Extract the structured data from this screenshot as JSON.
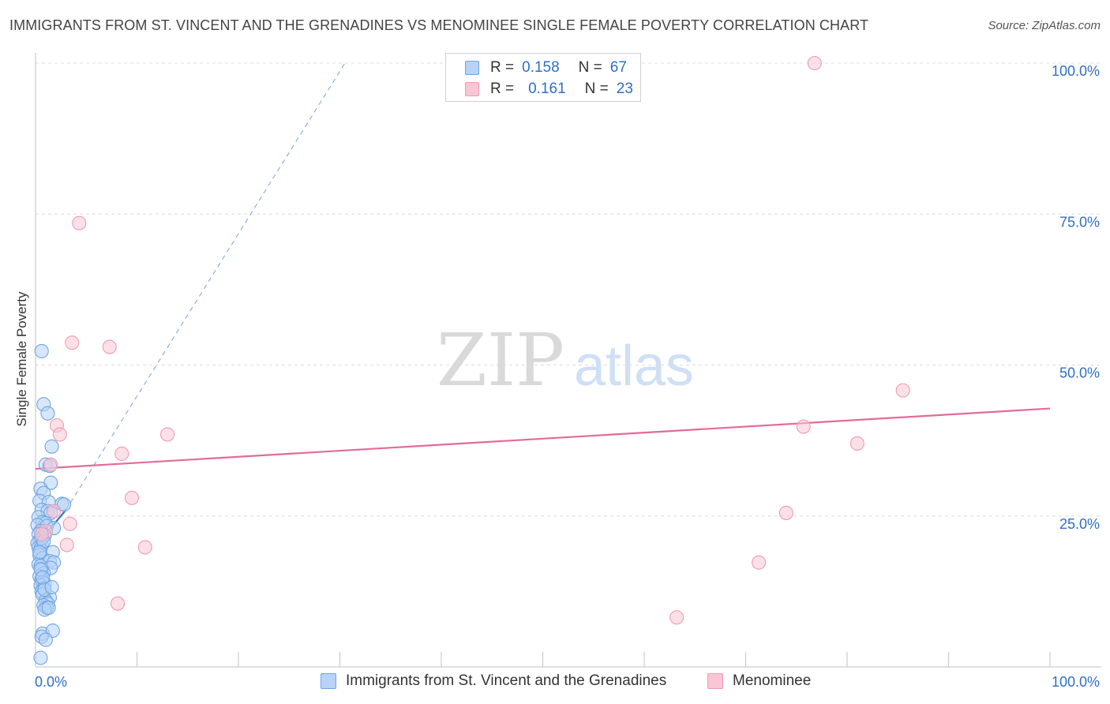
{
  "chart_data": {
    "type": "scatter",
    "title": "IMMIGRANTS FROM ST. VINCENT AND THE GRENADINES VS MENOMINEE SINGLE FEMALE POVERTY CORRELATION CHART",
    "source": "Source: ZipAtlas.com",
    "ylabel": "Single Female Poverty",
    "xlabel": "",
    "xlim": [
      0,
      100
    ],
    "ylim": [
      0,
      100
    ],
    "x_ticks": [
      {
        "value": 0,
        "label": "0.0%"
      },
      {
        "value": 100,
        "label": "100.0%"
      }
    ],
    "y_ticks": [
      {
        "value": 25,
        "label": "25.0%"
      },
      {
        "value": 50,
        "label": "50.0%"
      },
      {
        "value": 75,
        "label": "75.0%"
      },
      {
        "value": 100,
        "label": "100.0%"
      }
    ],
    "grid": true,
    "watermark": {
      "part1": "ZIP",
      "part2": "atlas"
    },
    "legend": {
      "r_label": "R =",
      "n_label": "N =",
      "entries": [
        {
          "r": "0.158",
          "n": "67"
        },
        {
          "r": "0.161",
          "n": "23"
        }
      ]
    },
    "series": [
      {
        "name": "Immigrants from St. Vincent and the Grenadines",
        "color": "#6fa4e4",
        "fill": "#b7d3f5",
        "r": 0.158,
        "n": 67,
        "trend": {
          "x0": 0,
          "y0": 20.0,
          "x1": 3.0,
          "y1": 26.0,
          "dashed_to": [
            30.5,
            100
          ]
        },
        "points": [
          [
            0.6,
            52.3
          ],
          [
            0.8,
            43.5
          ],
          [
            1.2,
            42.0
          ],
          [
            1.6,
            36.5
          ],
          [
            1.0,
            33.5
          ],
          [
            1.4,
            33.3
          ],
          [
            1.5,
            30.5
          ],
          [
            0.5,
            29.5
          ],
          [
            0.8,
            28.8
          ],
          [
            0.4,
            27.5
          ],
          [
            1.3,
            27.3
          ],
          [
            2.6,
            27.0
          ],
          [
            2.8,
            26.9
          ],
          [
            0.6,
            26.0
          ],
          [
            1.2,
            25.8
          ],
          [
            1.5,
            25.5
          ],
          [
            0.3,
            24.8
          ],
          [
            0.7,
            24.0
          ],
          [
            1.0,
            23.8
          ],
          [
            0.2,
            23.5
          ],
          [
            1.1,
            23.3
          ],
          [
            1.8,
            23.0
          ],
          [
            0.5,
            22.5
          ],
          [
            0.3,
            22.0
          ],
          [
            0.9,
            21.8
          ],
          [
            0.4,
            21.0
          ],
          [
            0.2,
            20.5
          ],
          [
            0.6,
            20.2
          ],
          [
            0.3,
            19.8
          ],
          [
            0.5,
            19.5
          ],
          [
            1.7,
            19.0
          ],
          [
            0.4,
            18.5
          ],
          [
            0.7,
            18.0
          ],
          [
            1.4,
            17.5
          ],
          [
            1.8,
            17.3
          ],
          [
            0.3,
            17.0
          ],
          [
            0.5,
            16.7
          ],
          [
            1.5,
            16.4
          ],
          [
            0.6,
            16.0
          ],
          [
            0.8,
            15.5
          ],
          [
            0.4,
            15.0
          ],
          [
            0.6,
            14.5
          ],
          [
            0.7,
            14.0
          ],
          [
            0.9,
            13.8
          ],
          [
            0.5,
            13.5
          ],
          [
            0.8,
            13.0
          ],
          [
            0.6,
            12.5
          ],
          [
            0.7,
            12.0
          ],
          [
            1.4,
            11.5
          ],
          [
            1.0,
            11.0
          ],
          [
            1.2,
            10.5
          ],
          [
            0.8,
            10.2
          ],
          [
            1.1,
            9.8
          ],
          [
            0.9,
            9.5
          ],
          [
            1.3,
            9.8
          ],
          [
            0.7,
            5.5
          ],
          [
            1.7,
            6.0
          ],
          [
            0.6,
            5.0
          ],
          [
            1.0,
            4.5
          ],
          [
            0.5,
            1.5
          ],
          [
            0.6,
            21.3
          ],
          [
            0.8,
            20.8
          ],
          [
            0.4,
            19.0
          ],
          [
            0.5,
            16.2
          ],
          [
            0.7,
            14.8
          ],
          [
            0.9,
            12.8
          ],
          [
            1.6,
            13.2
          ]
        ]
      },
      {
        "name": "Menominee",
        "color": "#ef9ab4",
        "fill": "#f9c6d5",
        "r": 0.161,
        "n": 23,
        "trend": {
          "x0": 0,
          "y0": 32.8,
          "x1": 100,
          "y1": 42.8
        },
        "points": [
          [
            76.8,
            100.0
          ],
          [
            4.3,
            73.5
          ],
          [
            3.6,
            53.7
          ],
          [
            7.3,
            53.0
          ],
          [
            85.5,
            45.8
          ],
          [
            2.1,
            40.0
          ],
          [
            75.7,
            39.8
          ],
          [
            2.4,
            38.5
          ],
          [
            13.0,
            38.5
          ],
          [
            81.0,
            37.0
          ],
          [
            8.5,
            35.3
          ],
          [
            1.5,
            33.5
          ],
          [
            9.5,
            28.0
          ],
          [
            1.8,
            25.8
          ],
          [
            74.0,
            25.5
          ],
          [
            3.4,
            23.7
          ],
          [
            1.0,
            22.5
          ],
          [
            3.1,
            20.2
          ],
          [
            10.8,
            19.8
          ],
          [
            71.3,
            17.3
          ],
          [
            8.1,
            10.5
          ],
          [
            63.2,
            8.2
          ],
          [
            0.6,
            22.0
          ]
        ]
      }
    ]
  }
}
